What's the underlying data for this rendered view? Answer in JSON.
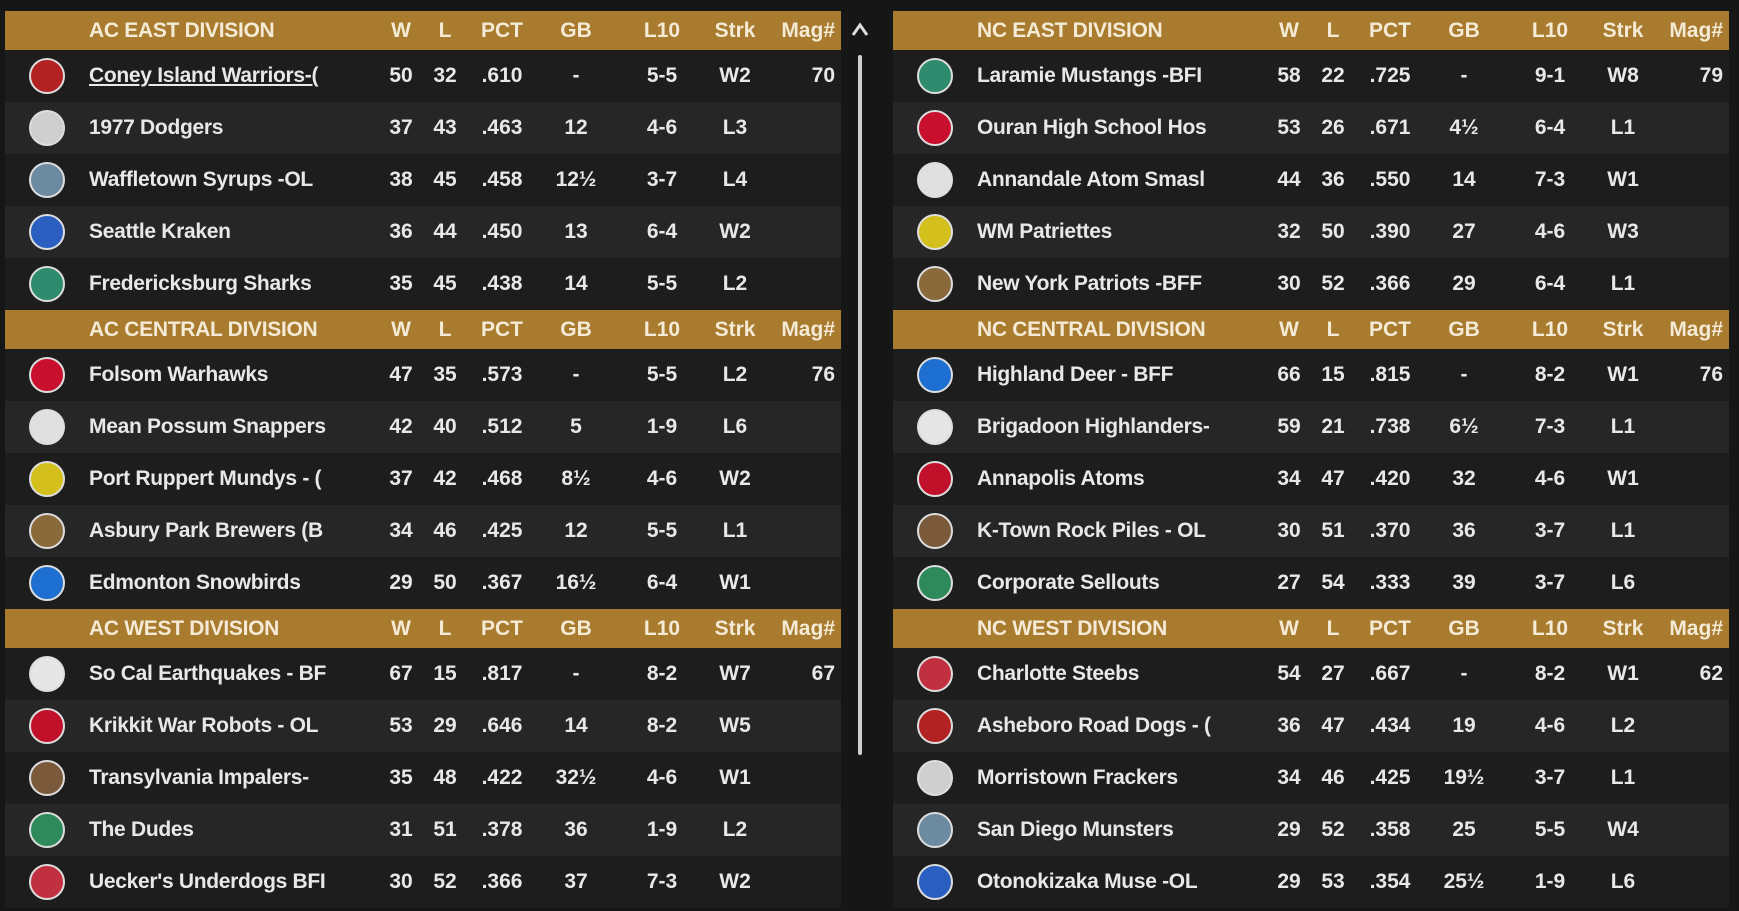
{
  "panels": [
    {
      "divisions": [
        {
          "name": "AC EAST DIVISION",
          "columns": [
            "W",
            "L",
            "PCT",
            "GB",
            "L10",
            "Strk",
            "Mag#"
          ],
          "teams": [
            {
              "name": "Coney Island Warriors-(",
              "w": 50,
              "l": 32,
              "pct": ".610",
              "gb": "-",
              "l10": "5-5",
              "strk": "W2",
              "mag": 70
            },
            {
              "name": "1977 Dodgers",
              "w": 37,
              "l": 43,
              "pct": ".463",
              "gb": "12",
              "l10": "4-6",
              "strk": "L3",
              "mag": null
            },
            {
              "name": "Waffletown Syrups -OL",
              "w": 38,
              "l": 45,
              "pct": ".458",
              "gb": "12½",
              "l10": "3-7",
              "strk": "L4",
              "mag": null
            },
            {
              "name": "Seattle Kraken",
              "w": 36,
              "l": 44,
              "pct": ".450",
              "gb": "13",
              "l10": "6-4",
              "strk": "W2",
              "mag": null
            },
            {
              "name": "Fredericksburg Sharks",
              "w": 35,
              "l": 45,
              "pct": ".438",
              "gb": "14",
              "l10": "5-5",
              "strk": "L2",
              "mag": null
            }
          ]
        },
        {
          "name": "AC CENTRAL DIVISION",
          "columns": [
            "W",
            "L",
            "PCT",
            "GB",
            "L10",
            "Strk",
            "Mag#"
          ],
          "teams": [
            {
              "name": "Folsom Warhawks",
              "w": 47,
              "l": 35,
              "pct": ".573",
              "gb": "-",
              "l10": "5-5",
              "strk": "L2",
              "mag": 76
            },
            {
              "name": "Mean Possum Snappers",
              "w": 42,
              "l": 40,
              "pct": ".512",
              "gb": "5",
              "l10": "1-9",
              "strk": "L6",
              "mag": null
            },
            {
              "name": "Port Ruppert Mundys - (",
              "w": 37,
              "l": 42,
              "pct": ".468",
              "gb": "8½",
              "l10": "4-6",
              "strk": "W2",
              "mag": null
            },
            {
              "name": "Asbury Park Brewers (B",
              "w": 34,
              "l": 46,
              "pct": ".425",
              "gb": "12",
              "l10": "5-5",
              "strk": "L1",
              "mag": null
            },
            {
              "name": "Edmonton Snowbirds",
              "w": 29,
              "l": 50,
              "pct": ".367",
              "gb": "16½",
              "l10": "6-4",
              "strk": "W1",
              "mag": null
            }
          ]
        },
        {
          "name": "AC WEST DIVISION",
          "columns": [
            "W",
            "L",
            "PCT",
            "GB",
            "L10",
            "Strk",
            "Mag#"
          ],
          "teams": [
            {
              "name": "So Cal Earthquakes - BF",
              "w": 67,
              "l": 15,
              "pct": ".817",
              "gb": "-",
              "l10": "8-2",
              "strk": "W7",
              "mag": 67
            },
            {
              "name": "Krikkit War Robots - OL",
              "w": 53,
              "l": 29,
              "pct": ".646",
              "gb": "14",
              "l10": "8-2",
              "strk": "W5",
              "mag": null
            },
            {
              "name": "Transylvania Impalers-",
              "w": 35,
              "l": 48,
              "pct": ".422",
              "gb": "32½",
              "l10": "4-6",
              "strk": "W1",
              "mag": null
            },
            {
              "name": "The Dudes",
              "w": 31,
              "l": 51,
              "pct": ".378",
              "gb": "36",
              "l10": "1-9",
              "strk": "L2",
              "mag": null
            },
            {
              "name": "Uecker's Underdogs BFI",
              "w": 30,
              "l": 52,
              "pct": ".366",
              "gb": "37",
              "l10": "7-3",
              "strk": "W2",
              "mag": null
            }
          ]
        }
      ]
    },
    {
      "divisions": [
        {
          "name": "NC EAST DIVISION",
          "columns": [
            "W",
            "L",
            "PCT",
            "GB",
            "L10",
            "Strk",
            "Mag#"
          ],
          "teams": [
            {
              "name": "Laramie Mustangs -BFI",
              "w": 58,
              "l": 22,
              "pct": ".725",
              "gb": "-",
              "l10": "9-1",
              "strk": "W8",
              "mag": 79
            },
            {
              "name": "Ouran High School Hos",
              "w": 53,
              "l": 26,
              "pct": ".671",
              "gb": "4½",
              "l10": "6-4",
              "strk": "L1",
              "mag": null
            },
            {
              "name": "Annandale Atom Smasl",
              "w": 44,
              "l": 36,
              "pct": ".550",
              "gb": "14",
              "l10": "7-3",
              "strk": "W1",
              "mag": null
            },
            {
              "name": "WM Patriettes",
              "w": 32,
              "l": 50,
              "pct": ".390",
              "gb": "27",
              "l10": "4-6",
              "strk": "W3",
              "mag": null
            },
            {
              "name": "New York Patriots -BFF",
              "w": 30,
              "l": 52,
              "pct": ".366",
              "gb": "29",
              "l10": "6-4",
              "strk": "L1",
              "mag": null
            }
          ]
        },
        {
          "name": "NC CENTRAL DIVISION",
          "columns": [
            "W",
            "L",
            "PCT",
            "GB",
            "L10",
            "Strk",
            "Mag#"
          ],
          "teams": [
            {
              "name": "Highland Deer - BFF",
              "w": 66,
              "l": 15,
              "pct": ".815",
              "gb": "-",
              "l10": "8-2",
              "strk": "W1",
              "mag": 76
            },
            {
              "name": "Brigadoon Highlanders-",
              "w": 59,
              "l": 21,
              "pct": ".738",
              "gb": "6½",
              "l10": "7-3",
              "strk": "L1",
              "mag": null
            },
            {
              "name": "Annapolis Atoms",
              "w": 34,
              "l": 47,
              "pct": ".420",
              "gb": "32",
              "l10": "4-6",
              "strk": "W1",
              "mag": null
            },
            {
              "name": "K-Town Rock Piles - OL",
              "w": 30,
              "l": 51,
              "pct": ".370",
              "gb": "36",
              "l10": "3-7",
              "strk": "L1",
              "mag": null
            },
            {
              "name": "Corporate Sellouts",
              "w": 27,
              "l": 54,
              "pct": ".333",
              "gb": "39",
              "l10": "3-7",
              "strk": "L6",
              "mag": null
            }
          ]
        },
        {
          "name": "NC WEST DIVISION",
          "columns": [
            "W",
            "L",
            "PCT",
            "GB",
            "L10",
            "Strk",
            "Mag#"
          ],
          "teams": [
            {
              "name": "Charlotte Steebs",
              "w": 54,
              "l": 27,
              "pct": ".667",
              "gb": "-",
              "l10": "8-2",
              "strk": "W1",
              "mag": 62
            },
            {
              "name": "Asheboro Road Dogs - (",
              "w": 36,
              "l": 47,
              "pct": ".434",
              "gb": "19",
              "l10": "4-6",
              "strk": "L2",
              "mag": null
            },
            {
              "name": "Morristown Frackers",
              "w": 34,
              "l": 46,
              "pct": ".425",
              "gb": "19½",
              "l10": "3-7",
              "strk": "L1",
              "mag": null
            },
            {
              "name": "San Diego Munsters",
              "w": 29,
              "l": 52,
              "pct": ".358",
              "gb": "25",
              "l10": "5-5",
              "strk": "W4",
              "mag": null
            },
            {
              "name": "Otonokizaka Muse -OL",
              "w": 29,
              "l": 53,
              "pct": ".354",
              "gb": "25½",
              "l10": "1-9",
              "strk": "L6",
              "mag": null
            }
          ]
        }
      ]
    }
  ]
}
